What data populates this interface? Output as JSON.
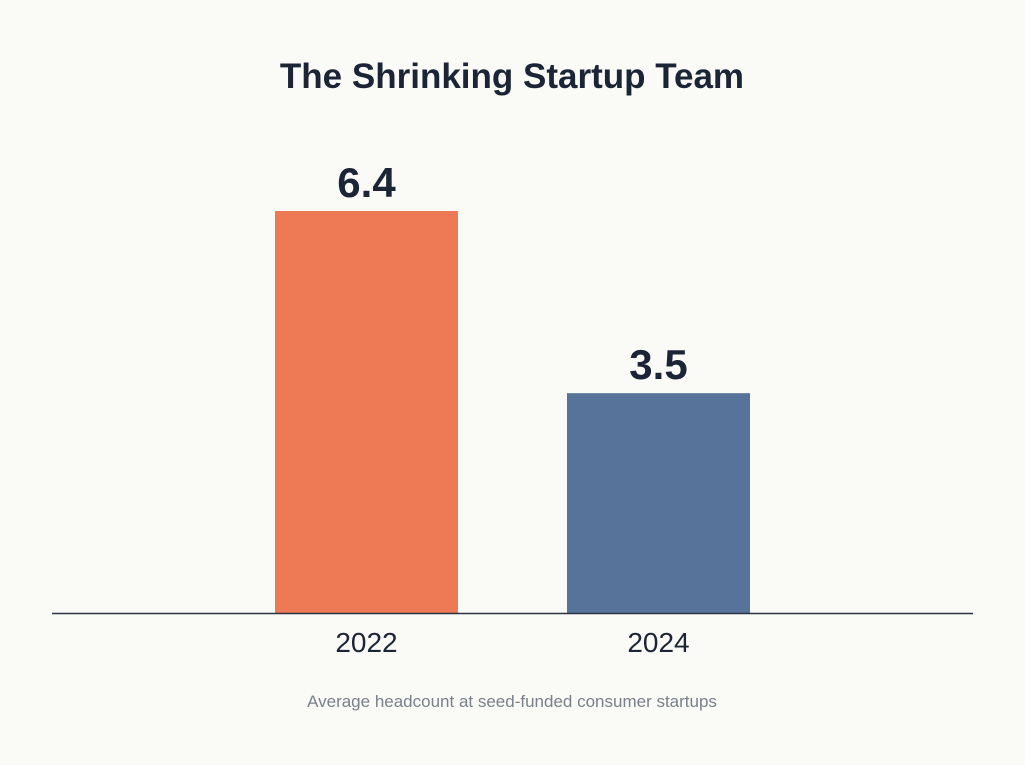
{
  "chart_data": {
    "type": "bar",
    "title": "The Shrinking Startup Team",
    "categories": [
      "2022",
      "2024"
    ],
    "values": [
      6.4,
      3.5
    ],
    "data_labels": [
      "6.4",
      "3.5"
    ],
    "colors": [
      "#ee7a55",
      "#587399"
    ],
    "caption": "Average headcount at seed-funded consumer startups",
    "xlabel": "",
    "ylabel": "",
    "ylim": [
      0,
      6.4
    ],
    "grid": false,
    "y_axis_visible": false
  }
}
